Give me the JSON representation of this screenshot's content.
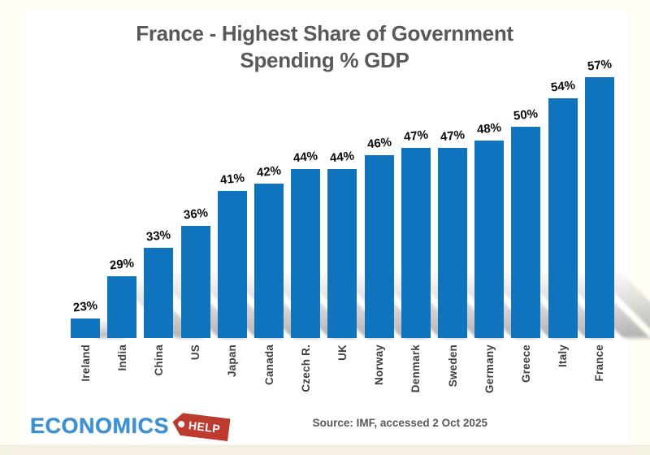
{
  "title": {
    "line1": "France - Highest Share of Government",
    "line2": "Spending % GDP"
  },
  "chart_data": {
    "type": "bar",
    "title": "France - Highest Share of Government Spending % GDP",
    "categories": [
      "Ireland",
      "India",
      "China",
      "US",
      "Japan",
      "Canada",
      "Czech R.",
      "UK",
      "Norway",
      "Denmark",
      "Sweden",
      "Germany",
      "Greece",
      "Italy",
      "France"
    ],
    "values": [
      23,
      29,
      33,
      36,
      41,
      42,
      44,
      44,
      46,
      47,
      47,
      48,
      50,
      54,
      57
    ],
    "value_labels": [
      "23%",
      "29%",
      "33%",
      "36%",
      "41%",
      "42%",
      "44%",
      "44%",
      "46%",
      "47%",
      "47%",
      "48%",
      "50%",
      "54%",
      "57%"
    ],
    "unit": "%",
    "xlabel": "",
    "ylabel": "",
    "ylim": [
      20,
      58
    ],
    "grid": false,
    "legend": false,
    "bar_color": "#0f73be",
    "value_label_color": "#0b0b0b",
    "category_label_color": "#3f3f41"
  },
  "footer": {
    "logo": {
      "economics": "ECONOMICS",
      "help": "HELP",
      "tag_icon": "price-tag-icon",
      "brand_blue": "#3f90d0",
      "brand_red": "#bd3a2e"
    },
    "source": "Source: IMF, accessed 2 Oct 2025"
  },
  "colors": {
    "page_background": "#fffdf4",
    "panel_background": "#ffffff",
    "title_color": "#58595b",
    "bottom_strip": "#f5f0e1"
  }
}
